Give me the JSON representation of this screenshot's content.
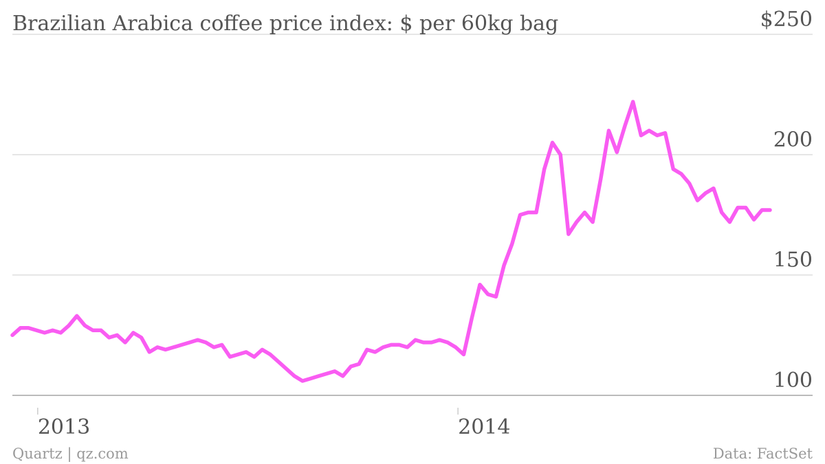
{
  "chart_data": {
    "type": "line",
    "title": "Brazilian Arabica coffee price index: $ per 60kg bag",
    "source": "Data: FactSet",
    "credit": "Quartz | qz.com",
    "y_tick_labels": [
      "$250",
      "200",
      "150",
      "100"
    ],
    "y_ticks": [
      250,
      200,
      150,
      100
    ],
    "ylim": [
      100,
      250
    ],
    "x_tick_labels": [
      "2013",
      "2014"
    ],
    "x_ticks": [
      "2013-01-01",
      "2014-01-01"
    ],
    "xlim": [
      "2012-12-10",
      "2014-09-29"
    ],
    "grid": true,
    "series": [
      {
        "name": "",
        "color": "#f95cf2",
        "x": [
          "2012-12-10",
          "2012-12-17",
          "2012-12-24",
          "2012-12-31",
          "2013-01-07",
          "2013-01-14",
          "2013-01-21",
          "2013-01-28",
          "2013-02-04",
          "2013-02-11",
          "2013-02-18",
          "2013-02-25",
          "2013-03-04",
          "2013-03-11",
          "2013-03-18",
          "2013-03-25",
          "2013-04-01",
          "2013-04-08",
          "2013-04-15",
          "2013-04-22",
          "2013-04-29",
          "2013-05-06",
          "2013-05-13",
          "2013-05-20",
          "2013-05-27",
          "2013-06-03",
          "2013-06-10",
          "2013-06-17",
          "2013-06-24",
          "2013-07-01",
          "2013-07-08",
          "2013-07-15",
          "2013-07-22",
          "2013-07-29",
          "2013-08-05",
          "2013-08-12",
          "2013-08-19",
          "2013-08-26",
          "2013-09-02",
          "2013-09-09",
          "2013-09-16",
          "2013-09-23",
          "2013-09-30",
          "2013-10-07",
          "2013-10-14",
          "2013-10-21",
          "2013-10-28",
          "2013-11-04",
          "2013-11-11",
          "2013-11-18",
          "2013-11-25",
          "2013-12-02",
          "2013-12-09",
          "2013-12-16",
          "2013-12-23",
          "2013-12-30",
          "2014-01-06",
          "2014-01-13",
          "2014-01-20",
          "2014-01-27",
          "2014-02-03",
          "2014-02-10",
          "2014-02-17",
          "2014-02-24",
          "2014-03-03",
          "2014-03-10",
          "2014-03-17",
          "2014-03-24",
          "2014-03-31",
          "2014-04-07",
          "2014-04-14",
          "2014-04-21",
          "2014-04-28",
          "2014-05-05",
          "2014-05-12",
          "2014-05-19",
          "2014-05-26",
          "2014-06-02",
          "2014-06-09",
          "2014-06-16",
          "2014-06-23",
          "2014-06-30",
          "2014-07-07",
          "2014-07-14",
          "2014-07-21",
          "2014-07-28",
          "2014-08-04",
          "2014-08-11",
          "2014-08-18",
          "2014-08-25",
          "2014-09-01",
          "2014-09-08",
          "2014-09-15",
          "2014-09-22",
          "2014-09-29"
        ],
        "values": [
          125,
          128,
          128,
          127,
          126,
          127,
          126,
          129,
          133,
          129,
          127,
          127,
          124,
          125,
          122,
          126,
          124,
          118,
          120,
          119,
          120,
          121,
          122,
          123,
          122,
          120,
          121,
          116,
          117,
          118,
          116,
          119,
          117,
          114,
          111,
          108,
          106,
          107,
          108,
          109,
          110,
          108,
          112,
          113,
          119,
          118,
          120,
          121,
          121,
          120,
          123,
          122,
          122,
          123,
          122,
          120,
          117,
          132,
          146,
          142,
          141,
          154,
          163,
          175,
          176,
          176,
          194,
          205,
          200,
          167,
          172,
          176,
          172,
          190,
          210,
          201,
          212,
          222,
          208,
          210,
          208,
          209,
          194,
          192,
          188,
          181,
          184,
          186,
          176,
          172,
          178,
          178,
          173,
          177,
          177
        ]
      }
    ]
  }
}
